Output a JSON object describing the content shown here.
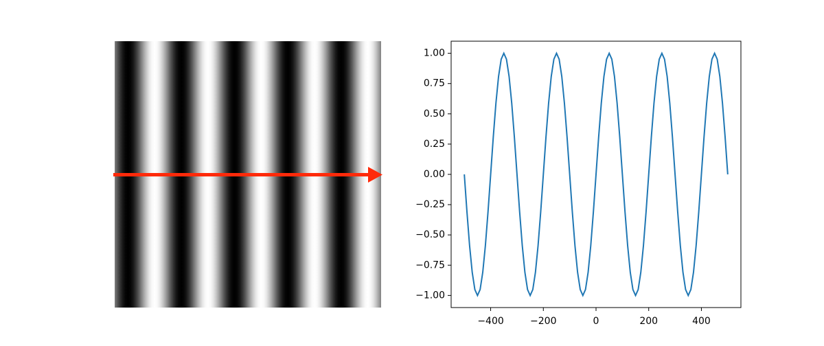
{
  "chart_data": {
    "type": "line",
    "x": [
      -500,
      -490,
      -480,
      -470,
      -460,
      -450,
      -440,
      -430,
      -420,
      -410,
      -400,
      -390,
      -380,
      -370,
      -360,
      -350,
      -340,
      -330,
      -320,
      -310,
      -300,
      -290,
      -280,
      -270,
      -260,
      -250,
      -240,
      -230,
      -220,
      -210,
      -200,
      -190,
      -180,
      -170,
      -160,
      -150,
      -140,
      -130,
      -120,
      -110,
      -100,
      -90,
      -80,
      -70,
      -60,
      -50,
      -40,
      -30,
      -20,
      -10,
      0,
      10,
      20,
      30,
      40,
      50,
      60,
      70,
      80,
      90,
      100,
      110,
      120,
      130,
      140,
      150,
      160,
      170,
      180,
      190,
      200,
      210,
      220,
      230,
      240,
      250,
      260,
      270,
      280,
      290,
      300,
      310,
      320,
      330,
      340,
      350,
      360,
      370,
      380,
      390,
      400,
      410,
      420,
      430,
      440,
      450,
      460,
      470,
      480,
      490,
      500
    ],
    "series": [
      {
        "color": "#1f77b4",
        "values": [
          0,
          -0.309,
          -0.588,
          -0.809,
          -0.951,
          -1,
          -0.951,
          -0.809,
          -0.588,
          -0.309,
          0,
          0.309,
          0.588,
          0.809,
          0.951,
          1,
          0.951,
          0.809,
          0.588,
          0.309,
          0,
          -0.309,
          -0.588,
          -0.809,
          -0.951,
          -1,
          -0.951,
          -0.809,
          -0.588,
          -0.309,
          0,
          0.309,
          0.588,
          0.809,
          0.951,
          1,
          0.951,
          0.809,
          0.588,
          0.309,
          0,
          -0.309,
          -0.588,
          -0.809,
          -0.951,
          -1,
          -0.951,
          -0.809,
          -0.588,
          -0.309,
          0,
          0.309,
          0.588,
          0.809,
          0.951,
          1,
          0.951,
          0.809,
          0.588,
          0.309,
          0,
          -0.309,
          -0.588,
          -0.809,
          -0.951,
          -1,
          -0.951,
          -0.809,
          -0.588,
          -0.309,
          0,
          0.309,
          0.588,
          0.809,
          0.951,
          1,
          0.951,
          0.809,
          0.588,
          0.309,
          0,
          -0.309,
          -0.588,
          -0.809,
          -0.951,
          -1,
          -0.951,
          -0.809,
          -0.588,
          -0.309,
          0,
          0.309,
          0.588,
          0.809,
          0.951,
          1,
          0.951,
          0.809,
          0.588,
          0.309,
          0
        ]
      }
    ],
    "xlim": [
      -550,
      550
    ],
    "ylim": [
      -1.1,
      1.1
    ],
    "xticks": [
      {
        "value": -400,
        "label": "−400"
      },
      {
        "value": -200,
        "label": "−200"
      },
      0,
      200,
      400
    ],
    "yticks": [
      {
        "value": 1,
        "label": "1.00"
      },
      {
        "value": 0.75,
        "label": "0.75"
      },
      {
        "value": 0.5,
        "label": "0.50"
      },
      {
        "value": 0.25,
        "label": "0.25"
      },
      {
        "value": 0,
        "label": "0.00"
      },
      {
        "value": -0.25,
        "label": "−0.25"
      },
      {
        "value": -0.5,
        "label": "−0.50"
      },
      {
        "value": -0.75,
        "label": "−0.75"
      },
      {
        "value": -1,
        "label": "−1.00"
      }
    ]
  }
}
